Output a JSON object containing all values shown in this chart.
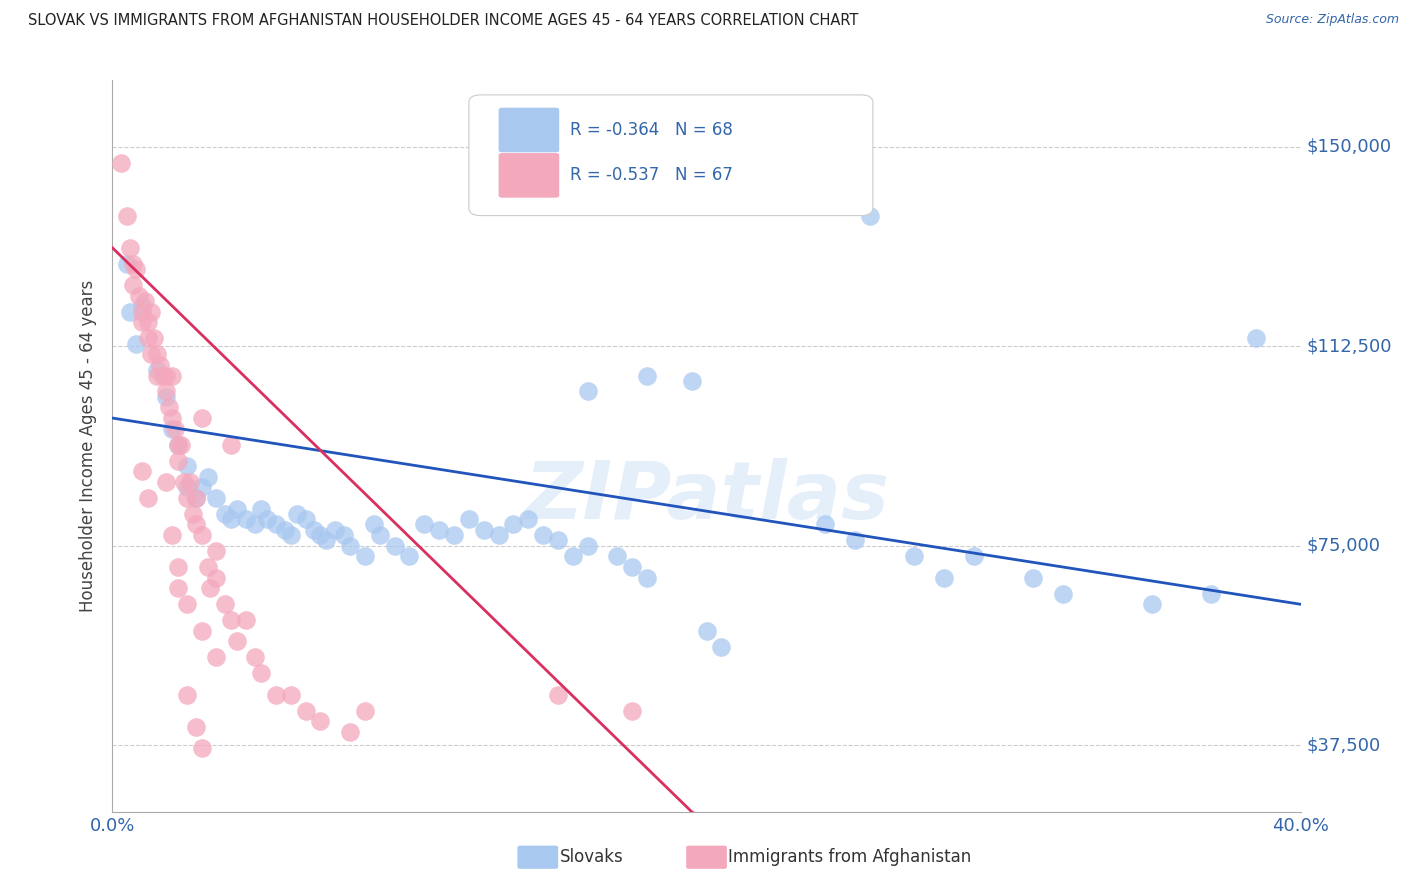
{
  "title": "SLOVAK VS IMMIGRANTS FROM AFGHANISTAN HOUSEHOLDER INCOME AGES 45 - 64 YEARS CORRELATION CHART",
  "source": "Source: ZipAtlas.com",
  "ylabel": "Householder Income Ages 45 - 64 years",
  "xlim": [
    0.0,
    0.4
  ],
  "ylim": [
    25000,
    162500
  ],
  "ytick_values": [
    37500,
    75000,
    112500,
    150000
  ],
  "ytick_labels": [
    "$37,500",
    "$75,000",
    "$112,500",
    "$150,000"
  ],
  "blue_color": "#A8C8F0",
  "pink_color": "#F4A8BC",
  "blue_line_color": "#2255BB",
  "pink_line_color": "#D93060",
  "R_blue": -0.364,
  "N_blue": 68,
  "R_pink": -0.537,
  "N_pink": 67,
  "legend_label_blue": "Slovaks",
  "legend_label_pink": "Immigrants from Afghanistan",
  "watermark": "ZIPatlas",
  "blue_scatter": [
    [
      0.005,
      128000
    ],
    [
      0.006,
      119000
    ],
    [
      0.01,
      120000
    ],
    [
      0.008,
      113000
    ],
    [
      0.015,
      108000
    ],
    [
      0.018,
      103000
    ],
    [
      0.02,
      97000
    ],
    [
      0.022,
      94000
    ],
    [
      0.025,
      90000
    ],
    [
      0.025,
      86000
    ],
    [
      0.028,
      84000
    ],
    [
      0.03,
      86000
    ],
    [
      0.032,
      88000
    ],
    [
      0.035,
      84000
    ],
    [
      0.038,
      81000
    ],
    [
      0.04,
      80000
    ],
    [
      0.042,
      82000
    ],
    [
      0.045,
      80000
    ],
    [
      0.048,
      79000
    ],
    [
      0.05,
      82000
    ],
    [
      0.052,
      80000
    ],
    [
      0.055,
      79000
    ],
    [
      0.058,
      78000
    ],
    [
      0.06,
      77000
    ],
    [
      0.062,
      81000
    ],
    [
      0.065,
      80000
    ],
    [
      0.068,
      78000
    ],
    [
      0.07,
      77000
    ],
    [
      0.072,
      76000
    ],
    [
      0.075,
      78000
    ],
    [
      0.078,
      77000
    ],
    [
      0.08,
      75000
    ],
    [
      0.085,
      73000
    ],
    [
      0.088,
      79000
    ],
    [
      0.09,
      77000
    ],
    [
      0.095,
      75000
    ],
    [
      0.1,
      73000
    ],
    [
      0.105,
      79000
    ],
    [
      0.11,
      78000
    ],
    [
      0.115,
      77000
    ],
    [
      0.12,
      80000
    ],
    [
      0.125,
      78000
    ],
    [
      0.13,
      77000
    ],
    [
      0.135,
      79000
    ],
    [
      0.14,
      80000
    ],
    [
      0.145,
      77000
    ],
    [
      0.15,
      76000
    ],
    [
      0.155,
      73000
    ],
    [
      0.16,
      75000
    ],
    [
      0.17,
      73000
    ],
    [
      0.175,
      71000
    ],
    [
      0.18,
      69000
    ],
    [
      0.2,
      59000
    ],
    [
      0.205,
      56000
    ],
    [
      0.24,
      79000
    ],
    [
      0.25,
      76000
    ],
    [
      0.27,
      73000
    ],
    [
      0.28,
      69000
    ],
    [
      0.29,
      73000
    ],
    [
      0.31,
      69000
    ],
    [
      0.32,
      66000
    ],
    [
      0.35,
      64000
    ],
    [
      0.37,
      66000
    ],
    [
      0.255,
      137000
    ],
    [
      0.385,
      114000
    ],
    [
      0.195,
      106000
    ],
    [
      0.18,
      107000
    ],
    [
      0.16,
      104000
    ]
  ],
  "pink_scatter": [
    [
      0.003,
      147000
    ],
    [
      0.005,
      137000
    ],
    [
      0.006,
      131000
    ],
    [
      0.007,
      128000
    ],
    [
      0.007,
      124000
    ],
    [
      0.008,
      127000
    ],
    [
      0.009,
      122000
    ],
    [
      0.01,
      119000
    ],
    [
      0.01,
      117000
    ],
    [
      0.011,
      121000
    ],
    [
      0.012,
      117000
    ],
    [
      0.012,
      114000
    ],
    [
      0.013,
      119000
    ],
    [
      0.013,
      111000
    ],
    [
      0.014,
      114000
    ],
    [
      0.015,
      111000
    ],
    [
      0.015,
      107000
    ],
    [
      0.016,
      109000
    ],
    [
      0.017,
      107000
    ],
    [
      0.018,
      104000
    ],
    [
      0.018,
      107000
    ],
    [
      0.019,
      101000
    ],
    [
      0.02,
      99000
    ],
    [
      0.021,
      97000
    ],
    [
      0.022,
      94000
    ],
    [
      0.022,
      91000
    ],
    [
      0.023,
      94000
    ],
    [
      0.024,
      87000
    ],
    [
      0.025,
      84000
    ],
    [
      0.026,
      87000
    ],
    [
      0.027,
      81000
    ],
    [
      0.028,
      84000
    ],
    [
      0.028,
      79000
    ],
    [
      0.03,
      77000
    ],
    [
      0.032,
      71000
    ],
    [
      0.033,
      67000
    ],
    [
      0.035,
      74000
    ],
    [
      0.035,
      69000
    ],
    [
      0.038,
      64000
    ],
    [
      0.04,
      61000
    ],
    [
      0.042,
      57000
    ],
    [
      0.045,
      61000
    ],
    [
      0.048,
      54000
    ],
    [
      0.05,
      51000
    ],
    [
      0.055,
      47000
    ],
    [
      0.06,
      47000
    ],
    [
      0.065,
      44000
    ],
    [
      0.07,
      42000
    ],
    [
      0.08,
      40000
    ],
    [
      0.085,
      44000
    ],
    [
      0.02,
      107000
    ],
    [
      0.03,
      99000
    ],
    [
      0.04,
      94000
    ],
    [
      0.022,
      67000
    ],
    [
      0.025,
      64000
    ],
    [
      0.03,
      59000
    ],
    [
      0.035,
      54000
    ],
    [
      0.025,
      47000
    ],
    [
      0.028,
      41000
    ],
    [
      0.03,
      37000
    ],
    [
      0.15,
      47000
    ],
    [
      0.175,
      44000
    ],
    [
      0.01,
      89000
    ],
    [
      0.012,
      84000
    ],
    [
      0.018,
      87000
    ],
    [
      0.02,
      77000
    ],
    [
      0.022,
      71000
    ]
  ],
  "blue_line": [
    [
      0.0,
      99000
    ],
    [
      0.4,
      64000
    ]
  ],
  "pink_line_solid": [
    [
      0.0,
      131000
    ],
    [
      0.195,
      25000
    ]
  ],
  "pink_line_dashed": [
    [
      0.195,
      25000
    ],
    [
      0.35,
      0
    ]
  ],
  "background_color": "#FFFFFF",
  "grid_color": "#CCCCCC",
  "title_color": "#222222",
  "axis_label_color": "#3366AA",
  "ylabel_color": "#444444"
}
